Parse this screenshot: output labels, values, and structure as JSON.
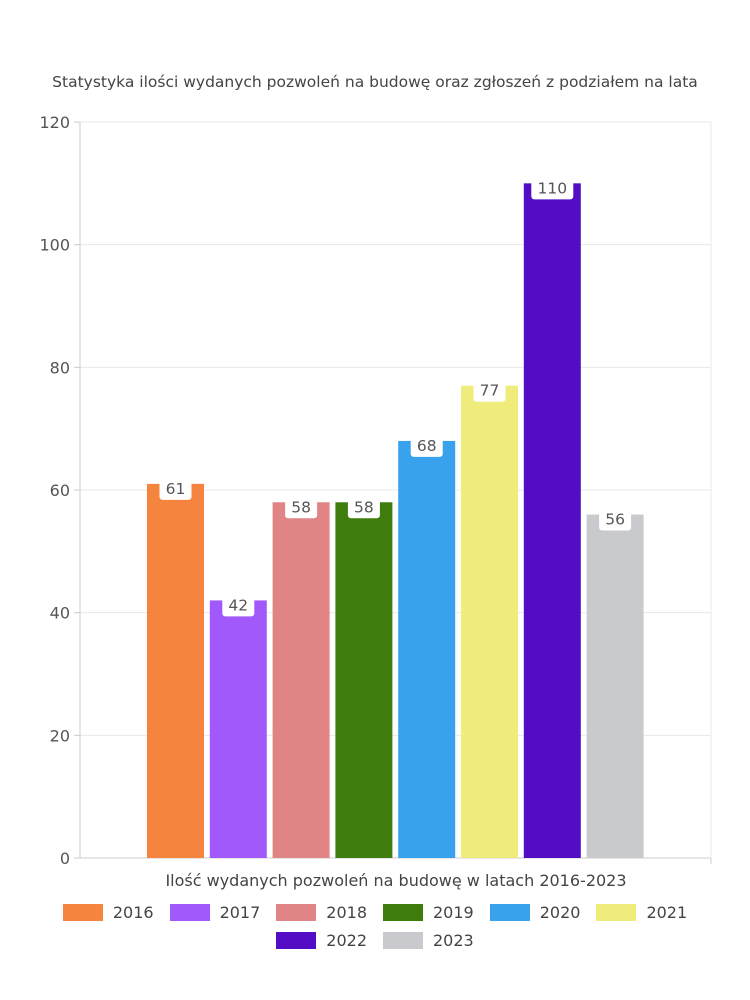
{
  "chart_data": {
    "type": "bar",
    "title": "Statystyka ilości wydanych pozwoleń na budowę oraz zgłoszeń z podziałem na lata",
    "xlabel": "Ilość wydanych pozwoleń na budowę w latach 2016-2023",
    "ylabel": "",
    "ylim": [
      0,
      120
    ],
    "yticks": [
      "0",
      "20",
      "40",
      "60",
      "80",
      "100",
      "120"
    ],
    "grid": true,
    "legend_position": "bottom",
    "categories": [
      "2016",
      "2017",
      "2018",
      "2019",
      "2020",
      "2021",
      "2022",
      "2023"
    ],
    "values": [
      61,
      42,
      58,
      58,
      68,
      77,
      110,
      56
    ],
    "value_labels": [
      "61",
      "42",
      "58",
      "58",
      "68",
      "77",
      "110",
      "56"
    ],
    "colors": [
      "#f5843f",
      "#a259fb",
      "#e18485",
      "#3e7d0c",
      "#38a3ec",
      "#f0ec7c",
      "#520dc5",
      "#c9cacd"
    ]
  }
}
